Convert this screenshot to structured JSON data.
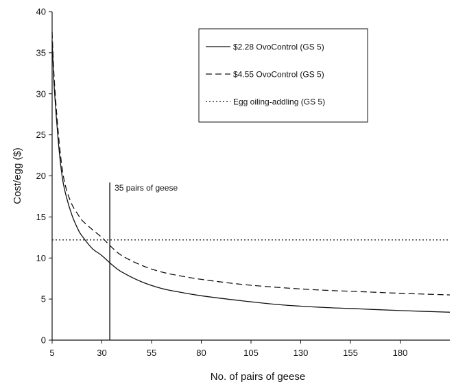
{
  "chart_data": {
    "type": "line",
    "title": "",
    "xlabel": "No. of pairs of geese",
    "ylabel": "Cost/egg ($)",
    "xlim": [
      5,
      205
    ],
    "ylim": [
      0,
      40
    ],
    "xticks": [
      5,
      30,
      55,
      80,
      105,
      130,
      155,
      180
    ],
    "yticks": [
      0,
      5,
      10,
      15,
      20,
      25,
      30,
      35,
      40
    ],
    "xtick_labels": [
      "5",
      "30",
      "55",
      "80",
      "105",
      "130",
      "155",
      "180"
    ],
    "ytick_labels": [
      "0",
      "5",
      "10",
      "15",
      "20",
      "25",
      "30",
      "35",
      "40"
    ],
    "grid": false,
    "legend_position": "top-right",
    "series": [
      {
        "name": "$2.28 OvoControl (GS 5)",
        "style": "solid",
        "color": "#111111",
        "x": [
          5,
          6,
          8,
          10,
          12,
          15,
          18,
          20,
          25,
          30,
          35,
          40,
          50,
          60,
          70,
          80,
          100,
          120,
          140,
          160,
          180,
          205
        ],
        "y": [
          36.5,
          31,
          24.5,
          20,
          17.6,
          15.2,
          13.5,
          12.7,
          11.2,
          10.3,
          9.2,
          8.3,
          7.1,
          6.3,
          5.8,
          5.4,
          4.8,
          4.3,
          4.0,
          3.8,
          3.6,
          3.4
        ]
      },
      {
        "name": "$4.55 OvoControl (GS 5)",
        "style": "dashed",
        "color": "#111111",
        "x": [
          5,
          6,
          8,
          10,
          12,
          15,
          18,
          20,
          25,
          30,
          35,
          40,
          50,
          60,
          70,
          80,
          100,
          120,
          140,
          160,
          180,
          205
        ],
        "y": [
          37.5,
          32,
          25.5,
          21,
          18.5,
          16.5,
          15.3,
          14.6,
          13.5,
          12.5,
          11.3,
          10.3,
          9.1,
          8.3,
          7.8,
          7.4,
          6.8,
          6.4,
          6.1,
          5.9,
          5.7,
          5.5
        ]
      },
      {
        "name": "Egg oiling-addling (GS 5)",
        "style": "dotted",
        "color": "#111111",
        "x": [
          5,
          205
        ],
        "y": [
          12.2,
          12.2
        ]
      }
    ],
    "annotations": [
      {
        "text": "35 pairs of geese",
        "x": 34,
        "y_from": 0,
        "y_to": 19.2
      }
    ]
  }
}
